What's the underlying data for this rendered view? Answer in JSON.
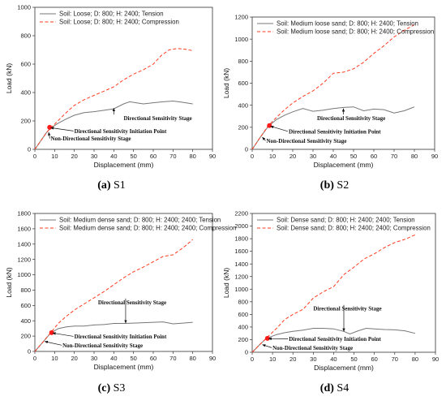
{
  "chart_data": [
    {
      "type": "line",
      "caption_letter": "(a)",
      "caption_name": "S1",
      "xlabel": "Displacement (mm)",
      "ylabel": "Load (kN)",
      "xlim": [
        0,
        90
      ],
      "ylim": [
        0,
        1000
      ],
      "xticks": [
        0,
        10,
        20,
        30,
        40,
        50,
        60,
        70,
        80,
        90
      ],
      "yticks": [
        0,
        200,
        400,
        600,
        800,
        1000
      ],
      "legend_position": "top-left",
      "series": [
        {
          "name": "Soil: Loose; D: 800; H: 2400; Tension",
          "color": "#777777",
          "style": "solid",
          "x": [
            0,
            3,
            6,
            8,
            12,
            16,
            20,
            25,
            30,
            35,
            40,
            45,
            48,
            55,
            60,
            65,
            70,
            73,
            80
          ],
          "y": [
            0,
            60,
            120,
            150,
            185,
            215,
            240,
            258,
            265,
            275,
            285,
            320,
            335,
            320,
            328,
            335,
            340,
            335,
            320
          ]
        },
        {
          "name": "Soil: Loose; D: 800; H: 2400; Compression",
          "color": "#ff3b1f",
          "style": "dashed",
          "x": [
            0,
            3,
            6,
            8,
            12,
            16,
            20,
            25,
            30,
            35,
            40,
            45,
            50,
            55,
            60,
            64,
            68,
            72,
            76,
            80
          ],
          "y": [
            0,
            60,
            120,
            150,
            205,
            260,
            310,
            350,
            380,
            410,
            440,
            490,
            530,
            560,
            600,
            660,
            700,
            710,
            705,
            695
          ]
        }
      ],
      "initiation_point": {
        "x": 7.5,
        "y": 155
      },
      "annotations": [
        {
          "text": "Directional Sensitivity Stage",
          "target": [
            40,
            290
          ],
          "pos": [
            45,
            205
          ]
        },
        {
          "text": "Directional Sensitivity Initiation Point",
          "target": [
            8,
            152
          ],
          "pos": [
            20,
            115
          ]
        },
        {
          "text": "Non-Directional Sensitivity Stage",
          "target": [
            7,
            120
          ],
          "pos": [
            8,
            62
          ]
        }
      ]
    },
    {
      "type": "line",
      "caption_letter": "(b)",
      "caption_name": "S2",
      "xlabel": "Displacement (mm)",
      "ylabel": "Load (kN)",
      "xlim": [
        0,
        90
      ],
      "ylim": [
        0,
        1200
      ],
      "xticks": [
        0,
        10,
        20,
        30,
        40,
        50,
        60,
        70,
        80,
        90
      ],
      "yticks": [
        0,
        200,
        400,
        600,
        800,
        1000,
        1200
      ],
      "legend_position": "top-left",
      "series": [
        {
          "name": "Soil: Medium loose sand; D: 800; H: 2400; Tension",
          "color": "#777777",
          "style": "solid",
          "x": [
            0,
            4,
            8,
            12,
            16,
            20,
            25,
            30,
            35,
            40,
            45,
            50,
            55,
            60,
            65,
            70,
            75,
            80
          ],
          "y": [
            0,
            110,
            210,
            270,
            310,
            340,
            370,
            345,
            355,
            370,
            380,
            385,
            350,
            365,
            360,
            330,
            350,
            385
          ]
        },
        {
          "name": "Soil: Medium loose sand; D: 800; H: 2400; Compression",
          "color": "#ff3b1f",
          "style": "dashed",
          "x": [
            0,
            4,
            8,
            12,
            16,
            20,
            25,
            30,
            35,
            40,
            45,
            50,
            55,
            60,
            65,
            70,
            75,
            80
          ],
          "y": [
            0,
            110,
            215,
            290,
            360,
            420,
            480,
            530,
            600,
            690,
            700,
            730,
            790,
            870,
            940,
            1020,
            1080,
            1130
          ]
        }
      ],
      "initiation_point": {
        "x": 8.5,
        "y": 215
      },
      "annotations": [
        {
          "text": "Directional Sensitivity Stage",
          "target": [
            45,
            370
          ],
          "pos": [
            32,
            265
          ]
        },
        {
          "text": "Directional Sensitivity Initiation Point",
          "target": [
            9,
            210
          ],
          "pos": [
            18,
            145
          ]
        },
        {
          "text": "Non-Directional Sensitivity Stage",
          "target": [
            5,
            110
          ],
          "pos": [
            7,
            60
          ]
        }
      ]
    },
    {
      "type": "line",
      "caption_letter": "(c)",
      "caption_name": "S3",
      "xlabel": "Displacement (mm)",
      "ylabel": "Load (kN)",
      "xlim": [
        0,
        90
      ],
      "ylim": [
        0,
        1800
      ],
      "xticks": [
        0,
        10,
        20,
        30,
        40,
        50,
        60,
        70,
        80,
        90
      ],
      "yticks": [
        0,
        200,
        400,
        600,
        800,
        1000,
        1200,
        1400,
        1600,
        1800
      ],
      "legend_position": "top-left",
      "series": [
        {
          "name": "Soil: Medium dense sand; D: 800; H: 2400; 2400; Tension",
          "color": "#777777",
          "style": "solid",
          "x": [
            0,
            4,
            8,
            12,
            16,
            20,
            25,
            30,
            35,
            40,
            45,
            50,
            55,
            60,
            65,
            70,
            75,
            80
          ],
          "y": [
            0,
            120,
            240,
            300,
            320,
            330,
            330,
            345,
            350,
            365,
            365,
            370,
            375,
            380,
            385,
            360,
            370,
            380
          ]
        },
        {
          "name": "Soil: Medium dense sand; D: 800; H: 2400; 2400; Compression",
          "color": "#ff3b1f",
          "style": "dashed",
          "x": [
            0,
            4,
            8,
            12,
            16,
            20,
            25,
            30,
            35,
            40,
            45,
            50,
            55,
            60,
            65,
            70,
            75,
            80
          ],
          "y": [
            0,
            120,
            245,
            370,
            460,
            540,
            620,
            700,
            780,
            870,
            960,
            1040,
            1100,
            1170,
            1240,
            1260,
            1350,
            1460
          ]
        }
      ],
      "initiation_point": {
        "x": 8.5,
        "y": 245
      },
      "annotations": [
        {
          "text": "Directional Sensitivity Stage",
          "target": [
            46,
            370
          ],
          "pos": [
            32,
            615
          ]
        },
        {
          "text": "Directional Sensitivity Initiation Point",
          "target": [
            9,
            240
          ],
          "pos": [
            20,
            170
          ]
        },
        {
          "text": "Non-Directional Sensitivity Stage",
          "target": [
            5,
            130
          ],
          "pos": [
            14,
            55
          ]
        }
      ]
    },
    {
      "type": "line",
      "caption_letter": "(d)",
      "caption_name": "S4",
      "xlabel": "Displacement (mm)",
      "ylabel": "Load (kN)",
      "xlim": [
        0,
        90
      ],
      "ylim": [
        0,
        2200
      ],
      "xticks": [
        0,
        10,
        20,
        30,
        40,
        50,
        60,
        70,
        80,
        90
      ],
      "yticks": [
        0,
        200,
        400,
        600,
        800,
        1000,
        1200,
        1400,
        1600,
        1800,
        2000,
        2200
      ],
      "legend_position": "top-left",
      "series": [
        {
          "name": "Soil: Dense sand; D: 800; H: 2400; 2400; Tension",
          "color": "#777777",
          "style": "solid",
          "x": [
            0,
            4,
            7,
            12,
            16,
            20,
            25,
            30,
            35,
            40,
            45,
            48,
            52,
            56,
            60,
            65,
            70,
            75,
            80
          ],
          "y": [
            0,
            130,
            220,
            280,
            310,
            330,
            350,
            380,
            380,
            370,
            330,
            290,
            340,
            380,
            370,
            360,
            355,
            340,
            300
          ]
        },
        {
          "name": "Soil: Dense sand; D: 800; H: 2400; 2400; Compression",
          "color": "#ff3b1f",
          "style": "dashed",
          "x": [
            0,
            4,
            7,
            12,
            16,
            20,
            25,
            30,
            35,
            40,
            45,
            50,
            55,
            60,
            65,
            70,
            75,
            80
          ],
          "y": [
            0,
            130,
            225,
            380,
            520,
            600,
            680,
            860,
            960,
            1040,
            1230,
            1350,
            1480,
            1560,
            1660,
            1740,
            1790,
            1860
          ]
        }
      ],
      "initiation_point": {
        "x": 7.5,
        "y": 220
      },
      "annotations": [
        {
          "text": "Directional Sensitivity Stage",
          "target": [
            45,
            330
          ],
          "pos": [
            30,
            660
          ]
        },
        {
          "text": "Directional Sensitivity Initiation Point",
          "target": [
            8,
            215
          ],
          "pos": [
            18,
            180
          ]
        },
        {
          "text": "Non-Directional Sensitivity Stage",
          "target": [
            5,
            120
          ],
          "pos": [
            10,
            40
          ]
        }
      ]
    }
  ]
}
